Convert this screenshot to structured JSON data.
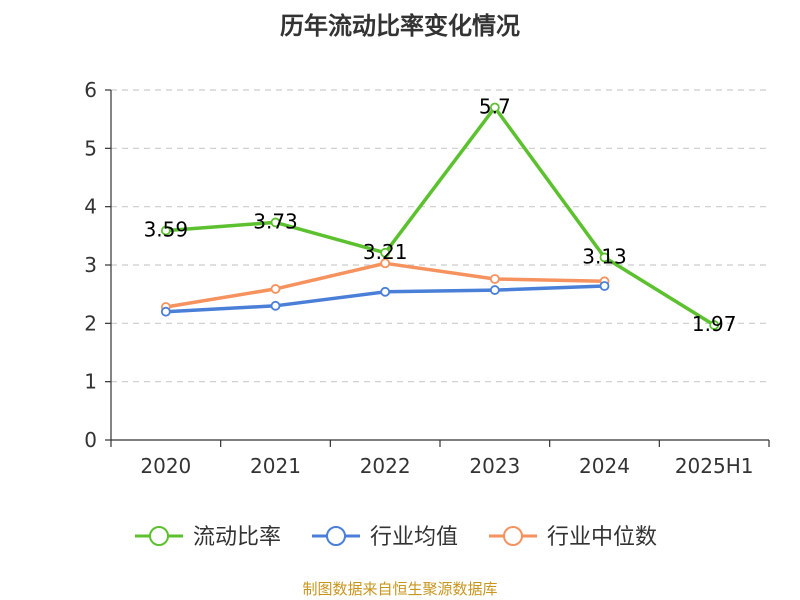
{
  "source_note": "制图数据来自恒生聚源数据库",
  "chart_data": {
    "type": "line",
    "title": "历年流动比率变化情况",
    "xlabel": "",
    "ylabel": "",
    "categories": [
      "2020",
      "2021",
      "2022",
      "2023",
      "2024",
      "2025H1"
    ],
    "ylim": [
      0,
      6
    ],
    "yticks": [
      0,
      1,
      2,
      3,
      4,
      5,
      6
    ],
    "grid": true,
    "legend_position": "bottom",
    "series": [
      {
        "name": "流动比率",
        "color": "#5cc12e",
        "values": [
          3.59,
          3.73,
          3.21,
          5.7,
          3.13,
          1.97
        ],
        "labels": [
          "3.59",
          "3.73",
          "3.21",
          "5.7",
          "3.13",
          "1.97"
        ]
      },
      {
        "name": "行业均值",
        "color": "#4a7fd8",
        "values": [
          2.2,
          2.3,
          2.54,
          2.57,
          2.64,
          null
        ]
      },
      {
        "name": "行业中位数",
        "color": "#f5925e",
        "values": [
          2.28,
          2.59,
          3.03,
          2.76,
          2.72,
          null
        ]
      }
    ]
  }
}
